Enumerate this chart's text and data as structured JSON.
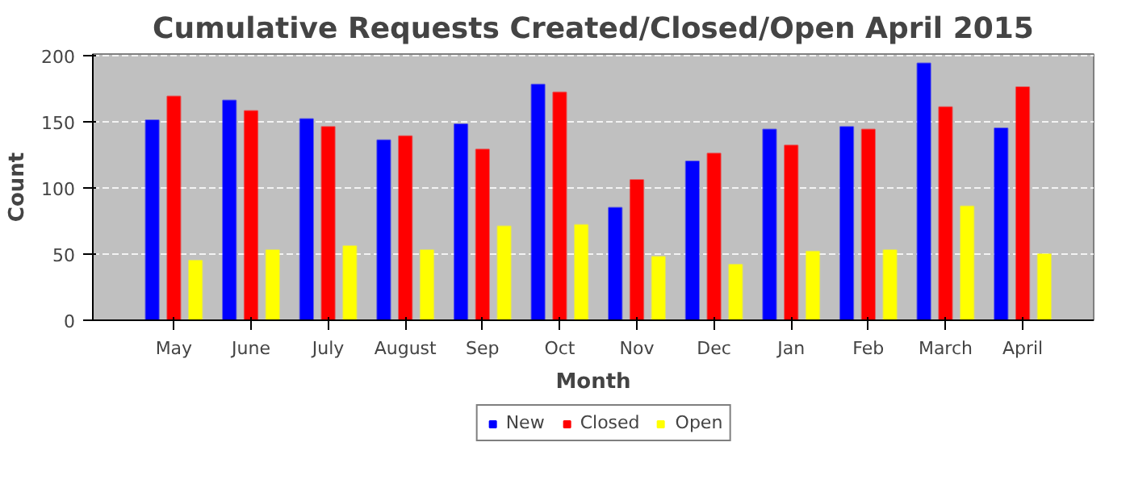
{
  "chart_data": {
    "type": "bar",
    "title": "Cumulative Requests Created/Closed/Open April 2015",
    "xlabel": "Month",
    "ylabel": "Count",
    "categories": [
      "May",
      "June",
      "July",
      "August",
      "Sep",
      "Oct",
      "Nov",
      "Dec",
      "Jan",
      "Feb",
      "March",
      "April"
    ],
    "series": [
      {
        "name": "New",
        "color": "#0000ff",
        "values": [
          151,
          166,
          152,
          136,
          148,
          178,
          85,
          120,
          144,
          146,
          194,
          145
        ]
      },
      {
        "name": "Closed",
        "color": "#ff0000",
        "values": [
          169,
          158,
          146,
          139,
          129,
          172,
          106,
          126,
          132,
          144,
          161,
          176
        ]
      },
      {
        "name": "Open",
        "color": "#ffff00",
        "values": [
          45,
          53,
          56,
          53,
          71,
          72,
          48,
          42,
          52,
          53,
          86,
          50
        ]
      }
    ],
    "ylim": [
      0,
      201
    ],
    "yticks": [
      0,
      50,
      100,
      150,
      200
    ],
    "grid": "y",
    "legend": "bottom"
  }
}
